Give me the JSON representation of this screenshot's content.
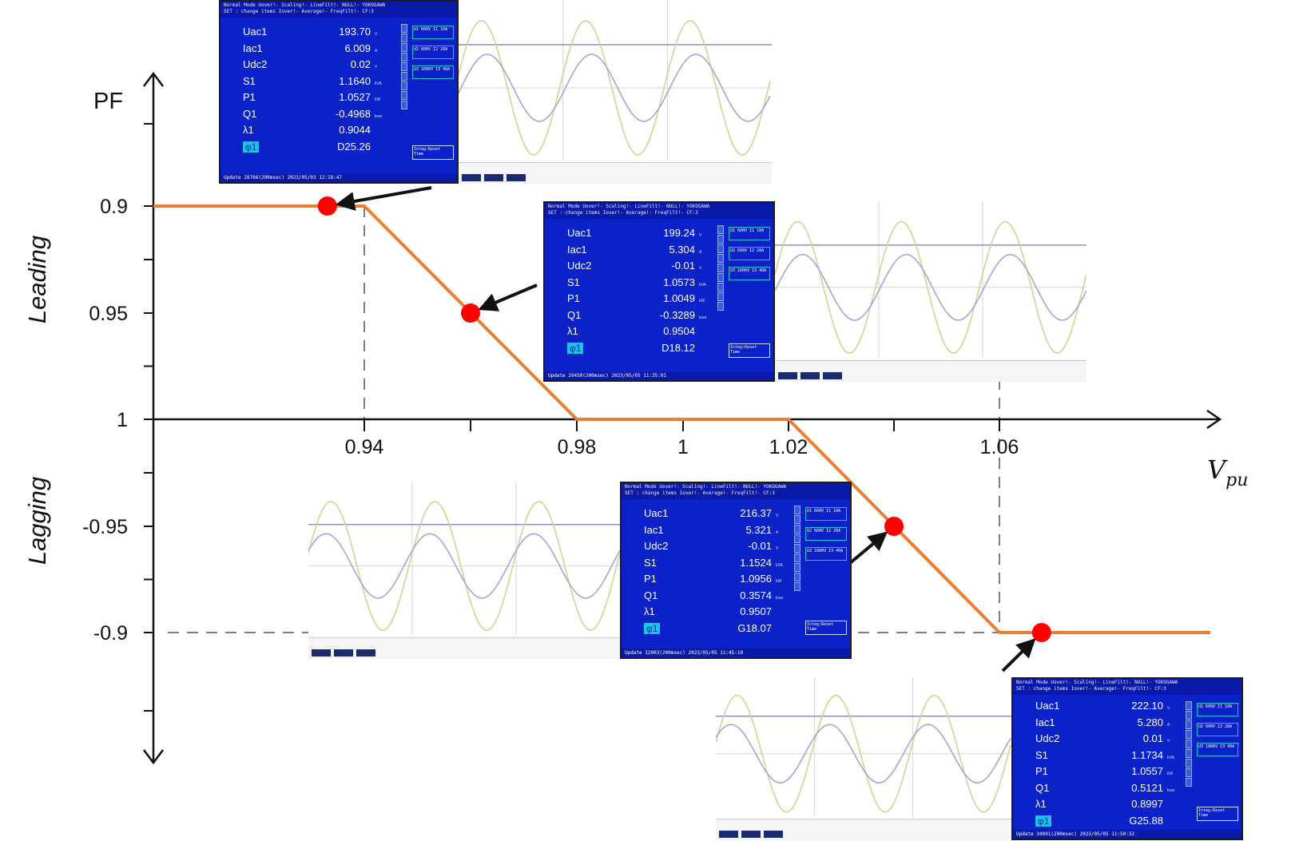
{
  "chart_data": {
    "type": "line",
    "title": "",
    "ylabel": "PF",
    "xlabel": "V",
    "xlabel_subscript": "pu",
    "x_ticks": [
      "0.94",
      "0.98",
      "1",
      "1.02",
      "1.06"
    ],
    "y_ticks": [
      "0.9",
      "0.95",
      "1",
      "-0.95",
      "-0.9"
    ],
    "region_labels": {
      "upper": "Leading",
      "lower": "Lagging"
    },
    "series": [
      {
        "x": [
          0.9,
          0.94,
          0.98,
          1.02,
          1.06,
          1.1
        ],
        "y": [
          0.9,
          0.9,
          1.0,
          1.0,
          -0.9,
          -0.9
        ],
        "color": "#ed7d31"
      }
    ],
    "markers": [
      {
        "x": 0.933,
        "y": 0.9,
        "color": "#ff0000"
      },
      {
        "x": 0.96,
        "y": 0.95,
        "color": "#ff0000"
      },
      {
        "x": 1.04,
        "y": -0.95,
        "color": "#ff0000"
      },
      {
        "x": 1.068,
        "y": -0.9,
        "color": "#ff0000"
      }
    ],
    "reference_lines": [
      {
        "x": 0.94
      },
      {
        "x": 1.06
      },
      {
        "y": -0.9
      }
    ],
    "colors": {
      "curve": "#ed7d31",
      "marker": "#ff0000",
      "guide": "#7f7f7f",
      "axis": "#111111",
      "arrow": "#111111"
    }
  },
  "screenshots": [
    {
      "meter": [
        {
          "label": "Uac1",
          "value": "193.70"
        },
        {
          "label": "Iac1",
          "value": "6.009"
        },
        {
          "label": "Udc2",
          "value": "0.02"
        },
        {
          "label": "S1",
          "value": "1.1640"
        },
        {
          "label": "P1",
          "value": "1.0527"
        },
        {
          "label": "Q1",
          "value": "-0.4968"
        },
        {
          "label": "λ1",
          "value": "0.9044"
        },
        {
          "label": "φ1",
          "value": "D25.26"
        }
      ]
    },
    {
      "meter": [
        {
          "label": "Uac1",
          "value": "199.24"
        },
        {
          "label": "Iac1",
          "value": "5.304"
        },
        {
          "label": "Udc2",
          "value": "-0.01"
        },
        {
          "label": "S1",
          "value": "1.0573"
        },
        {
          "label": "P1",
          "value": "1.0049"
        },
        {
          "label": "Q1",
          "value": "-0.3289"
        },
        {
          "label": "λ1",
          "value": "0.9504"
        },
        {
          "label": "φ1",
          "value": "D18.12"
        }
      ]
    },
    {
      "meter": [
        {
          "label": "Uac1",
          "value": "216.37"
        },
        {
          "label": "Iac1",
          "value": "5.321"
        },
        {
          "label": "Udc2",
          "value": "-0.01"
        },
        {
          "label": "S1",
          "value": "1.1524"
        },
        {
          "label": "P1",
          "value": "1.0956"
        },
        {
          "label": "Q1",
          "value": "0.3574"
        },
        {
          "label": "λ1",
          "value": "0.9507"
        },
        {
          "label": "φ1",
          "value": "G18.07"
        }
      ]
    },
    {
      "meter": [
        {
          "label": "Uac1",
          "value": "222.10"
        },
        {
          "label": "Iac1",
          "value": "5.280"
        },
        {
          "label": "Udc2",
          "value": "0.01"
        },
        {
          "label": "S1",
          "value": "1.1734"
        },
        {
          "label": "P1",
          "value": "1.0557"
        },
        {
          "label": "Q1",
          "value": "0.5121"
        },
        {
          "label": "λ1",
          "value": "0.8997"
        },
        {
          "label": "φ1",
          "value": "G25.88"
        }
      ]
    }
  ],
  "meter_units": [
    "V",
    "A",
    "V",
    "kVA",
    "kW",
    "kvar",
    "",
    ""
  ],
  "meter_chrome": {
    "topbar": "Normal Mode   Uover!-  Scaling!-  LineFilt!-  NULL!-   YOKOGAWA",
    "topbar2": "SET : change items       Iover!-  Average!-  FreqFilt!-  CF:3",
    "elements": [
      "U1 600V I1 10A",
      "U2 600V I2 20A",
      "U3 1000V I3 40A"
    ],
    "integ": "Integ:Reset Time",
    "footer_0": "Update 28766(200msec)    2023/05/03 12:18:47",
    "footer_1": "Update 29450(200msec)    2023/05/05 11:35:01",
    "footer_2": "Update 32003(200msec)    2023/05/05 11:45:10",
    "footer_3": "Update 34091(200msec)    2023/05/05 11:50:32"
  }
}
